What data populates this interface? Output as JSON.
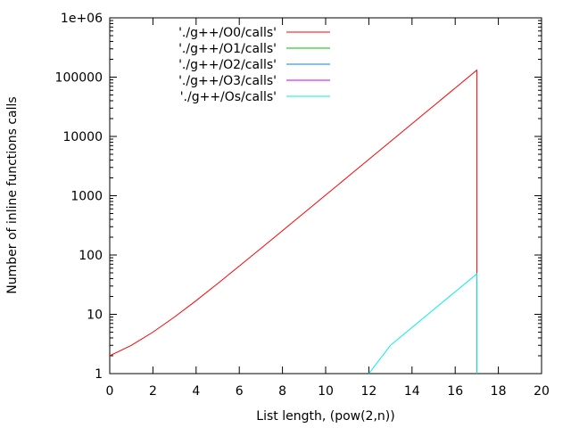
{
  "chart_data": {
    "type": "line",
    "xlabel": "List length, (pow(2,n))",
    "ylabel": "Number of inline functions calls",
    "xlim": [
      0,
      20
    ],
    "ylim": [
      1,
      1000000
    ],
    "yscale": "log",
    "x_ticks": [
      0,
      2,
      4,
      6,
      8,
      10,
      12,
      14,
      16,
      18,
      20
    ],
    "x_tick_labels": [
      "0",
      "2",
      "4",
      "6",
      "8",
      "10",
      "12",
      "14",
      "16",
      "18",
      "20"
    ],
    "y_ticks": [
      1,
      10,
      100,
      1000,
      10000,
      100000,
      1000000
    ],
    "y_tick_labels": [
      "1",
      "10",
      "100",
      "1000",
      "10000",
      "100000",
      "1e+06"
    ],
    "grid": false,
    "legend_position": "top-left",
    "series": [
      {
        "name": "'./g++/O0/calls'",
        "color": "#ff0000",
        "x": [
          0,
          1,
          2,
          3,
          4,
          5,
          6,
          7,
          8,
          9,
          10,
          11,
          12,
          13,
          14,
          15,
          16,
          17,
          17
        ],
        "y": [
          2,
          3,
          5,
          9,
          17,
          33,
          65,
          129,
          257,
          513,
          1025,
          2049,
          4097,
          8193,
          16385,
          32769,
          65537,
          131073,
          1
        ]
      },
      {
        "name": "'./g++/O1/calls'",
        "color": "#00c000",
        "x": [],
        "y": []
      },
      {
        "name": "'./g++/O2/calls'",
        "color": "#0080ff",
        "x": [],
        "y": []
      },
      {
        "name": "'./g++/O3/calls'",
        "color": "#c000ff",
        "x": [],
        "y": []
      },
      {
        "name": "'./g++/Os/calls'",
        "color": "#00eeee",
        "x": [
          12,
          13,
          14,
          15,
          16,
          17,
          17
        ],
        "y": [
          1,
          3,
          6,
          12,
          24,
          48,
          1
        ]
      }
    ]
  }
}
